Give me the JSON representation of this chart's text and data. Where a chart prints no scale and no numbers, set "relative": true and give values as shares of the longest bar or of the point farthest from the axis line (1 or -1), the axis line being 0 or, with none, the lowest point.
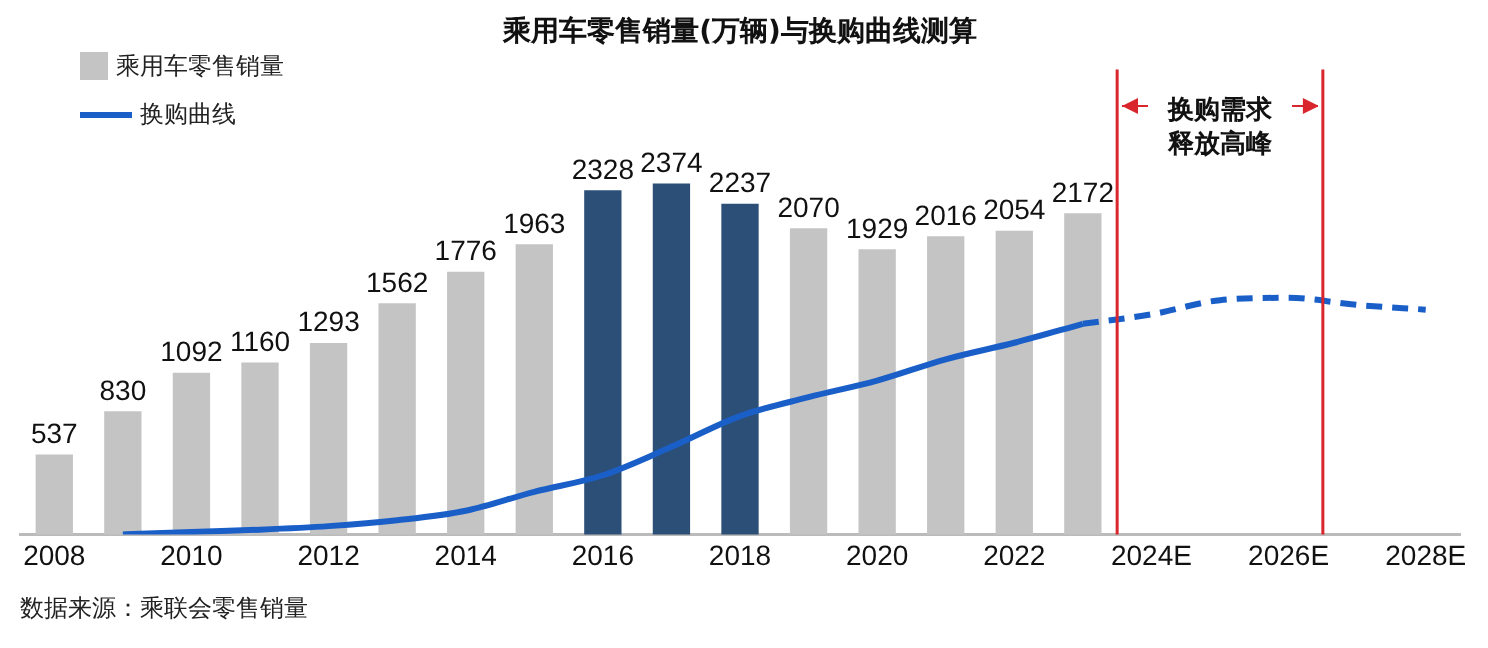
{
  "chart_data": [
    {
      "type": "bar",
      "title": "乘用车零售销量(万辆)与换购曲线测算",
      "x": [
        2008,
        2009,
        2010,
        2011,
        2012,
        2013,
        2014,
        2015,
        2016,
        2017,
        2018,
        2019,
        2020,
        2021,
        2022,
        2023
      ],
      "xlim": [
        2007.5,
        2028.5
      ],
      "xticks": [
        2008,
        2010,
        2012,
        2014,
        2016,
        2018,
        2020,
        2022,
        {
          "value": 2024,
          "label": "2024E"
        },
        {
          "value": 2026,
          "label": "2026E"
        },
        {
          "value": 2028,
          "label": "2028E"
        }
      ],
      "tick_labels": "x",
      "series": [
        {
          "name": "乘用车零售销量",
          "color": "#c4c4c4",
          "colors": [
            "#c4c4c4",
            "#c4c4c4",
            "#c4c4c4",
            "#c4c4c4",
            "#c4c4c4",
            "#c4c4c4",
            "#c4c4c4",
            "#c4c4c4",
            "#2c4f78",
            "#2c4f78",
            "#2c4f78",
            "#c4c4c4",
            "#c4c4c4",
            "#c4c4c4",
            "#c4c4c4",
            "#c4c4c4"
          ],
          "values": [
            537,
            830,
            1092,
            1160,
            1293,
            1562,
            1776,
            1963,
            2328,
            2374,
            2237,
            2070,
            1929,
            2016,
            2054,
            2172
          ]
        }
      ],
      "data_labels": true,
      "grid": false,
      "legend": "top left",
      "annotations": [
        "数据来源：乘联会零售销量"
      ]
    },
    {
      "type": "line",
      "relative": true,
      "xlim": [
        2007.5,
        2028.5
      ],
      "tick_labels": false,
      "series": [
        {
          "name": "换购曲线",
          "color": "#1a5fc8",
          "line_style": "solid",
          "x": [
            2009,
            2010,
            2011,
            2012,
            2013,
            2014,
            2015,
            2016,
            2017,
            2018,
            2019,
            2020,
            2021,
            2022,
            2023
          ],
          "values": [
            0,
            0.01,
            0.02,
            0.035,
            0.06,
            0.1,
            0.18,
            0.25,
            0.37,
            0.5,
            0.58,
            0.65,
            0.74,
            0.81,
            0.89
          ]
        },
        {
          "color": "#1a5fc8",
          "line_style": "dashed",
          "x": [
            2023,
            2024,
            2025,
            2026,
            2027,
            2028
          ],
          "values": [
            0.89,
            0.93,
            0.99,
            1,
            0.97,
            0.95
          ]
        }
      ],
      "marker": "none",
      "grid": false,
      "legend": "top left",
      "ref_lines": [
        {
          "axis": "x",
          "value": 2023.5,
          "color": "#d9262c"
        },
        {
          "axis": "x",
          "value": 2026.5,
          "color": "#d9262c"
        }
      ],
      "annotations": [
        "换购需求释放高峰"
      ]
    }
  ]
}
